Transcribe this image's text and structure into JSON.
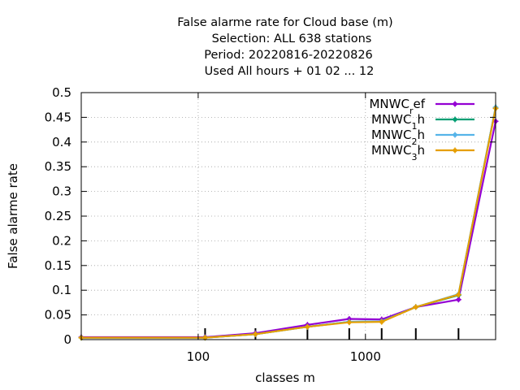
{
  "chart_data": {
    "type": "line",
    "title_lines": [
      "False alarme rate  for Cloud base (m)",
      "Selection: ALL    638 stations",
      "Period: 20220816-20220826",
      "Used  All hours + 01 02 ... 12"
    ],
    "xlabel": "classes m",
    "ylabel": "False alarme rate",
    "x_scale": "log",
    "xlim": [
      20,
      6000
    ],
    "ylim": [
      0,
      0.5
    ],
    "x_ticks": [
      100,
      1000
    ],
    "x_tick_labels": [
      "100",
      "1000"
    ],
    "y_ticks": [
      0,
      0.05,
      0.1,
      0.15,
      0.2,
      0.25,
      0.3,
      0.35,
      0.4,
      0.45,
      0.5
    ],
    "y_tick_labels": [
      "0",
      "0.05",
      "0.1",
      "0.15",
      "0.2",
      "0.25",
      "0.3",
      "0.35",
      "0.4",
      "0.45",
      "0.5"
    ],
    "class_edges": [
      20,
      110,
      220,
      450,
      800,
      1250,
      2000,
      3600,
      6000
    ],
    "grid": true,
    "legend_position": "top-right",
    "x": [
      20,
      110,
      220,
      450,
      800,
      1250,
      2000,
      3600,
      6000
    ],
    "series": [
      {
        "name": "MNWC_ref",
        "legend_base": "MNWC",
        "legend_sub": "r",
        "legend_tail": "ef",
        "color": "#9400d3",
        "values": [
          0.005,
          0.005,
          0.013,
          0.03,
          0.042,
          0.041,
          0.066,
          0.081,
          0.442
        ]
      },
      {
        "name": "MNWC_1h",
        "legend_base": "MNWC",
        "legend_sub": "1",
        "legend_tail": "h",
        "color": "#009e73",
        "values": [
          0.004,
          0.004,
          0.011,
          0.026,
          0.036,
          0.037,
          0.066,
          0.09,
          0.47
        ]
      },
      {
        "name": "MNWC_2h",
        "legend_base": "MNWC",
        "legend_sub": "2",
        "legend_tail": "h",
        "color": "#56b4e9",
        "values": [
          0.004,
          0.004,
          0.011,
          0.026,
          0.036,
          0.037,
          0.066,
          0.092,
          0.47
        ]
      },
      {
        "name": "MNWC_3h",
        "legend_base": "MNWC",
        "legend_sub": "3",
        "legend_tail": "h",
        "color": "#e69f00",
        "values": [
          0.004,
          0.004,
          0.011,
          0.026,
          0.035,
          0.036,
          0.066,
          0.091,
          0.468
        ]
      }
    ]
  }
}
